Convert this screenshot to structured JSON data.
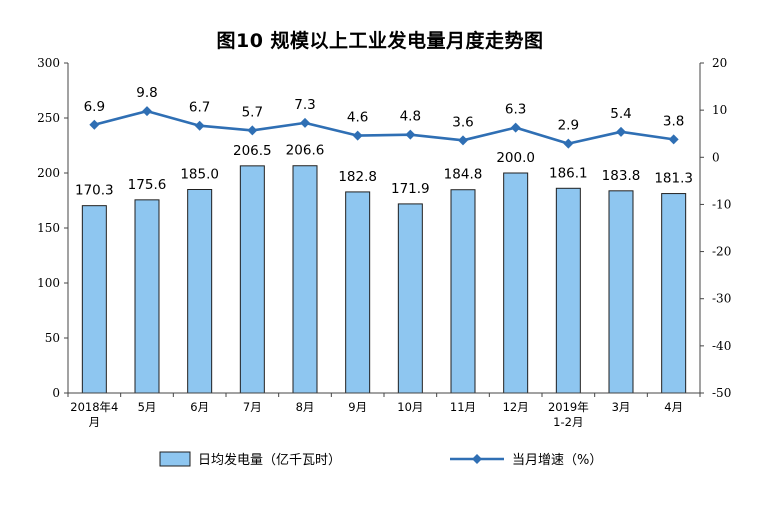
{
  "chart_data": {
    "type": "bar",
    "title": "图10  规模以上工业发电量月度走势图",
    "categories": [
      [
        "2018年4",
        "月"
      ],
      [
        "5月"
      ],
      [
        "6月"
      ],
      [
        "7月"
      ],
      [
        "8月"
      ],
      [
        "9月"
      ],
      [
        "10月"
      ],
      [
        "11月"
      ],
      [
        "12月"
      ],
      [
        "2019年",
        "1-2月"
      ],
      [
        "3月"
      ],
      [
        "4月"
      ]
    ],
    "series": [
      {
        "name": "日均发电量（亿千瓦时）",
        "type": "bar",
        "axis": "left",
        "color": "#8ec6f0",
        "stroke": "#1f1f1f",
        "values": [
          170.3,
          175.6,
          185.0,
          206.5,
          206.6,
          182.8,
          171.9,
          184.8,
          200.0,
          186.1,
          183.8,
          181.3
        ],
        "labels": [
          "170.3",
          "175.6",
          "185.0",
          "206.5",
          "206.6",
          "182.8",
          "171.9",
          "184.8",
          "200.0",
          "186.1",
          "183.8",
          "181.3"
        ]
      },
      {
        "name": "当月增速（%）",
        "type": "line",
        "axis": "right",
        "color": "#2f6fb4",
        "values": [
          6.9,
          9.8,
          6.7,
          5.7,
          7.3,
          4.6,
          4.8,
          3.6,
          6.3,
          2.9,
          5.4,
          3.8
        ],
        "labels": [
          "6.9",
          "9.8",
          "6.7",
          "5.7",
          "7.3",
          "4.6",
          "4.8",
          "3.6",
          "6.3",
          "2.9",
          "5.4",
          "3.8"
        ]
      }
    ],
    "y_left": {
      "ylim": [
        0,
        300
      ],
      "ticks": [
        "0",
        "50",
        "100",
        "150",
        "200",
        "250",
        "300"
      ]
    },
    "y_right": {
      "ylim": [
        -50,
        20
      ],
      "ticks": [
        "-50",
        "-40",
        "-30",
        "-20",
        "-10",
        "0",
        "10",
        "20"
      ]
    },
    "legend_position": "bottom",
    "grid": false
  }
}
